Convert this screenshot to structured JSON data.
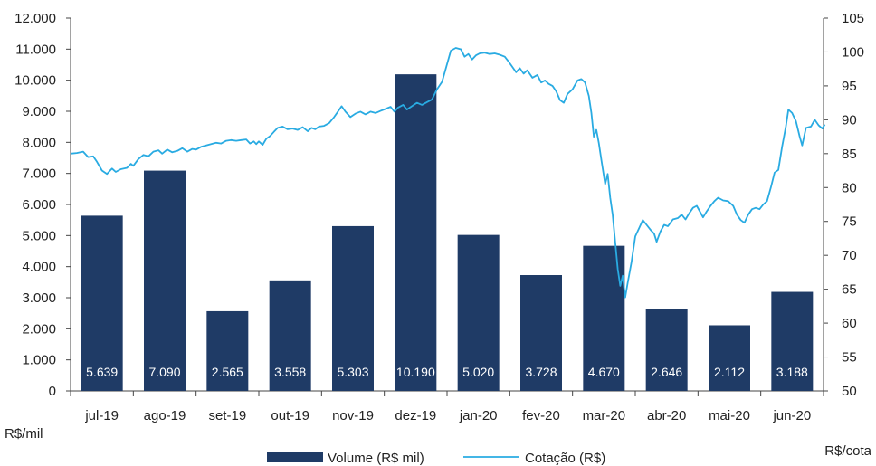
{
  "chart_data": {
    "type": "bar+line",
    "categories": [
      "jul-19",
      "ago-19",
      "set-19",
      "out-19",
      "nov-19",
      "dez-19",
      "jan-20",
      "fev-20",
      "mar-20",
      "abr-20",
      "mai-20",
      "jun-20"
    ],
    "series": [
      {
        "name": "Volume (R$ mil)",
        "type": "bar",
        "axis": "left",
        "color": "#1f3b66",
        "values": [
          5639,
          7090,
          2565,
          3558,
          5303,
          10190,
          5020,
          3728,
          4670,
          2646,
          2112,
          3188
        ],
        "value_labels": [
          "5.639",
          "7.090",
          "2.565",
          "3.558",
          "5.303",
          "10.190",
          "5.020",
          "3.728",
          "4.670",
          "2.646",
          "2.112",
          "3.188"
        ]
      },
      {
        "name": "Cotação (R$)",
        "type": "line",
        "axis": "right",
        "color": "#29abe2",
        "points": [
          [
            0.0,
            85.0
          ],
          [
            0.1,
            85.1
          ],
          [
            0.2,
            85.3
          ],
          [
            0.28,
            84.5
          ],
          [
            0.36,
            84.6
          ],
          [
            0.42,
            83.8
          ],
          [
            0.5,
            82.5
          ],
          [
            0.58,
            82.0
          ],
          [
            0.66,
            82.8
          ],
          [
            0.72,
            82.3
          ],
          [
            0.8,
            82.7
          ],
          [
            0.9,
            82.9
          ],
          [
            0.96,
            83.5
          ],
          [
            1.0,
            83.2
          ],
          [
            1.08,
            84.2
          ],
          [
            1.16,
            84.8
          ],
          [
            1.24,
            84.6
          ],
          [
            1.32,
            85.3
          ],
          [
            1.4,
            85.5
          ],
          [
            1.46,
            85.0
          ],
          [
            1.54,
            85.6
          ],
          [
            1.62,
            85.2
          ],
          [
            1.7,
            85.4
          ],
          [
            1.78,
            85.8
          ],
          [
            1.86,
            85.3
          ],
          [
            1.94,
            85.7
          ],
          [
            2.0,
            85.6
          ],
          [
            2.08,
            86.0
          ],
          [
            2.16,
            86.2
          ],
          [
            2.24,
            86.4
          ],
          [
            2.32,
            86.6
          ],
          [
            2.4,
            86.5
          ],
          [
            2.48,
            86.9
          ],
          [
            2.56,
            87.0
          ],
          [
            2.64,
            86.9
          ],
          [
            2.72,
            87.0
          ],
          [
            2.8,
            87.1
          ],
          [
            2.86,
            86.5
          ],
          [
            2.92,
            86.8
          ],
          [
            2.96,
            86.4
          ],
          [
            3.0,
            86.8
          ],
          [
            3.06,
            86.3
          ],
          [
            3.12,
            87.2
          ],
          [
            3.18,
            87.6
          ],
          [
            3.24,
            88.2
          ],
          [
            3.3,
            88.8
          ],
          [
            3.38,
            89.0
          ],
          [
            3.46,
            88.6
          ],
          [
            3.54,
            88.7
          ],
          [
            3.62,
            88.5
          ],
          [
            3.7,
            88.9
          ],
          [
            3.78,
            88.3
          ],
          [
            3.84,
            88.8
          ],
          [
            3.9,
            88.6
          ],
          [
            3.96,
            89.0
          ],
          [
            4.04,
            89.1
          ],
          [
            4.12,
            89.5
          ],
          [
            4.2,
            90.4
          ],
          [
            4.26,
            91.2
          ],
          [
            4.32,
            92.0
          ],
          [
            4.38,
            91.2
          ],
          [
            4.46,
            90.4
          ],
          [
            4.54,
            90.9
          ],
          [
            4.62,
            91.2
          ],
          [
            4.7,
            90.8
          ],
          [
            4.78,
            91.2
          ],
          [
            4.86,
            91.0
          ],
          [
            4.94,
            91.3
          ],
          [
            5.02,
            91.6
          ],
          [
            5.1,
            91.9
          ],
          [
            5.16,
            91.2
          ],
          [
            5.22,
            91.8
          ],
          [
            5.3,
            92.2
          ],
          [
            5.36,
            91.5
          ],
          [
            5.44,
            92.0
          ],
          [
            5.52,
            92.5
          ],
          [
            5.6,
            92.2
          ],
          [
            5.68,
            92.6
          ],
          [
            5.76,
            93.0
          ],
          [
            5.84,
            94.5
          ],
          [
            5.92,
            95.6
          ],
          [
            6.0,
            98.2
          ],
          [
            6.06,
            100.2
          ],
          [
            6.14,
            100.6
          ],
          [
            6.22,
            100.4
          ],
          [
            6.28,
            99.3
          ],
          [
            6.34,
            99.7
          ],
          [
            6.4,
            98.9
          ],
          [
            6.46,
            99.5
          ],
          [
            6.52,
            99.8
          ],
          [
            6.6,
            99.9
          ],
          [
            6.68,
            99.7
          ],
          [
            6.76,
            99.8
          ],
          [
            6.84,
            99.6
          ],
          [
            6.92,
            99.3
          ],
          [
            6.98,
            98.6
          ],
          [
            7.04,
            97.8
          ],
          [
            7.1,
            97.0
          ],
          [
            7.16,
            97.6
          ],
          [
            7.22,
            96.8
          ],
          [
            7.28,
            97.3
          ],
          [
            7.36,
            96.2
          ],
          [
            7.44,
            96.6
          ],
          [
            7.5,
            95.5
          ],
          [
            7.56,
            95.8
          ],
          [
            7.62,
            95.3
          ],
          [
            7.68,
            95.0
          ],
          [
            7.74,
            94.2
          ],
          [
            7.8,
            92.9
          ],
          [
            7.86,
            92.5
          ],
          [
            7.92,
            93.8
          ],
          [
            8.0,
            94.5
          ],
          [
            8.08,
            95.8
          ],
          [
            8.14,
            96.0
          ],
          [
            8.2,
            95.5
          ],
          [
            8.26,
            93.5
          ],
          [
            8.3,
            91.0
          ],
          [
            8.34,
            87.5
          ],
          [
            8.38,
            88.5
          ],
          [
            8.42,
            86.5
          ],
          [
            8.46,
            84.0
          ],
          [
            8.52,
            80.5
          ],
          [
            8.56,
            82.0
          ],
          [
            8.6,
            78.5
          ],
          [
            8.64,
            76.0
          ],
          [
            8.68,
            72.0
          ],
          [
            8.72,
            68.0
          ],
          [
            8.76,
            65.5
          ],
          [
            8.8,
            67.0
          ],
          [
            8.84,
            63.8
          ],
          [
            8.88,
            66.0
          ],
          [
            8.94,
            69.0
          ],
          [
            9.0,
            72.8
          ],
          [
            9.06,
            74.0
          ],
          [
            9.12,
            75.2
          ],
          [
            9.18,
            74.5
          ],
          [
            9.24,
            73.8
          ],
          [
            9.3,
            73.2
          ],
          [
            9.34,
            72.0
          ],
          [
            9.4,
            73.5
          ],
          [
            9.46,
            74.5
          ],
          [
            9.52,
            74.3
          ],
          [
            9.6,
            75.3
          ],
          [
            9.68,
            75.5
          ],
          [
            9.74,
            76.0
          ],
          [
            9.8,
            75.3
          ],
          [
            9.86,
            76.2
          ],
          [
            9.92,
            77.0
          ],
          [
            9.98,
            77.3
          ],
          [
            10.04,
            76.3
          ],
          [
            10.08,
            75.6
          ],
          [
            10.14,
            76.5
          ],
          [
            10.2,
            77.3
          ],
          [
            10.26,
            78.0
          ],
          [
            10.32,
            78.5
          ],
          [
            10.4,
            78.1
          ],
          [
            10.48,
            78.0
          ],
          [
            10.56,
            77.3
          ],
          [
            10.62,
            76.0
          ],
          [
            10.68,
            75.2
          ],
          [
            10.74,
            74.8
          ],
          [
            10.8,
            76.0
          ],
          [
            10.86,
            76.8
          ],
          [
            10.92,
            77.0
          ],
          [
            10.98,
            76.8
          ],
          [
            11.04,
            77.5
          ],
          [
            11.1,
            78.0
          ],
          [
            11.16,
            80.0
          ],
          [
            11.22,
            82.2
          ],
          [
            11.28,
            82.6
          ],
          [
            11.34,
            86.0
          ],
          [
            11.4,
            89.0
          ],
          [
            11.44,
            91.5
          ],
          [
            11.5,
            91.0
          ],
          [
            11.56,
            89.8
          ],
          [
            11.62,
            87.5
          ],
          [
            11.66,
            86.2
          ],
          [
            11.72,
            88.8
          ],
          [
            11.8,
            89.0
          ],
          [
            11.86,
            90.0
          ],
          [
            11.92,
            89.2
          ],
          [
            11.98,
            88.7
          ],
          [
            12.02,
            89.3
          ]
        ]
      }
    ],
    "y_left": {
      "min": 0,
      "max": 12000,
      "step": 1000,
      "tick_labels": [
        "0",
        "1.000",
        "2.000",
        "3.000",
        "4.000",
        "5.000",
        "6.000",
        "7.000",
        "8.000",
        "9.000",
        "10.000",
        "11.000",
        "12.000"
      ]
    },
    "y_right": {
      "min": 50,
      "max": 105,
      "step": 5,
      "tick_labels": [
        "50",
        "55",
        "60",
        "65",
        "70",
        "75",
        "80",
        "85",
        "90",
        "95",
        "100",
        "105"
      ]
    },
    "ylabel_left": "R$/mil",
    "ylabel_right": "R$/cota",
    "legend_position": "bottom-center",
    "grid": false
  }
}
